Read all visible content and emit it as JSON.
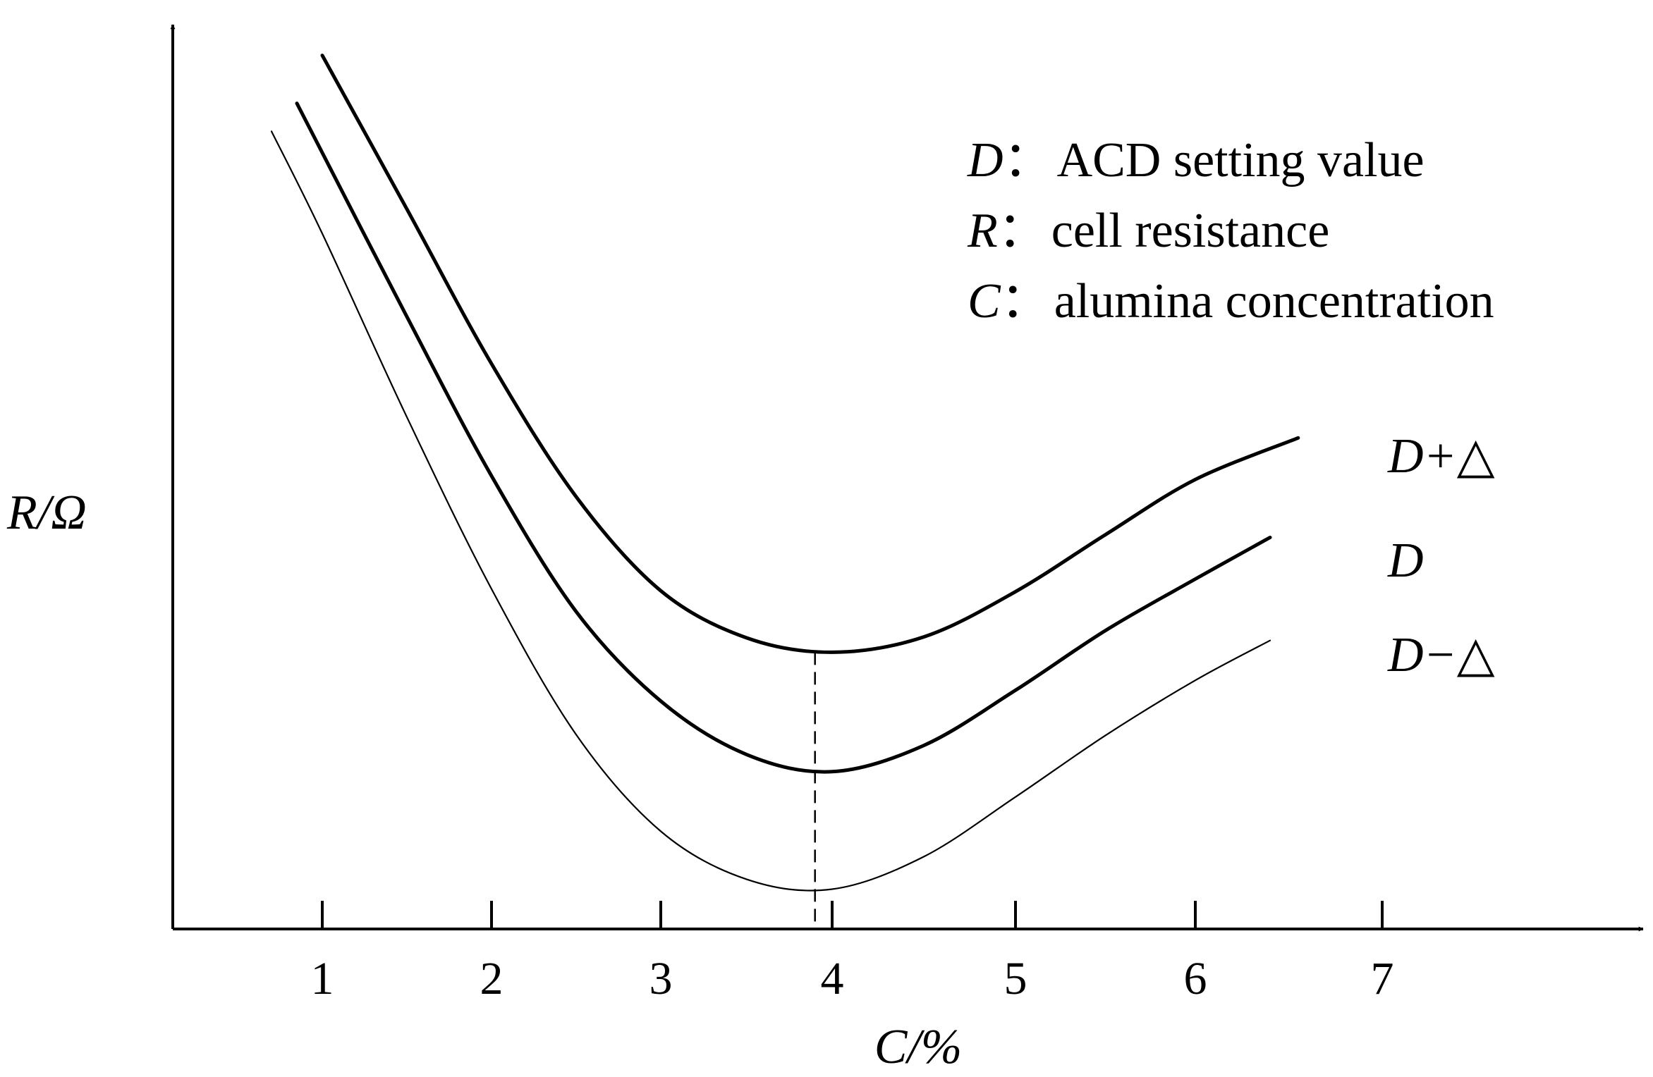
{
  "chart_data": {
    "type": "line",
    "title": "",
    "xlabel": "C/%",
    "ylabel": "R/Ω",
    "xlim": [
      0.1,
      8.5
    ],
    "ylim": [
      0,
      1
    ],
    "x_ticks": [
      "1",
      "2",
      "3",
      "4",
      "5",
      "6",
      "7"
    ],
    "y_ticks": [],
    "grid": false,
    "legend": {
      "placement": "top-right",
      "entries": [
        {
          "symbol": "D",
          "separator": "：",
          "text": "ACD setting value"
        },
        {
          "symbol": "R",
          "separator": "：",
          "text": "cell resistance"
        },
        {
          "symbol": "C",
          "separator": "：",
          "text": "alumina concentration"
        }
      ]
    },
    "minimum_marker": {
      "x": 3.9,
      "style": "dashed"
    },
    "series": [
      {
        "name": "D+△",
        "stroke_weight": "thick",
        "points": [
          [
            1.0,
            0.966
          ],
          [
            1.5,
            0.796
          ],
          [
            2.0,
            0.625
          ],
          [
            2.5,
            0.478
          ],
          [
            3.0,
            0.374
          ],
          [
            3.5,
            0.322
          ],
          [
            4.0,
            0.306
          ],
          [
            4.5,
            0.323
          ],
          [
            5.0,
            0.373
          ],
          [
            5.5,
            0.436
          ],
          [
            6.0,
            0.497
          ],
          [
            6.55,
            0.543
          ]
        ]
      },
      {
        "name": "D",
        "stroke_weight": "thick",
        "points": [
          [
            0.85,
            0.913
          ],
          [
            1.5,
            0.677
          ],
          [
            2.0,
            0.501
          ],
          [
            2.5,
            0.351
          ],
          [
            3.0,
            0.252
          ],
          [
            3.5,
            0.193
          ],
          [
            4.0,
            0.174
          ],
          [
            4.5,
            0.203
          ],
          [
            5.0,
            0.264
          ],
          [
            5.5,
            0.33
          ],
          [
            6.0,
            0.387
          ],
          [
            6.4,
            0.433
          ]
        ]
      },
      {
        "name": "D−△",
        "stroke_weight": "thin",
        "points": [
          [
            0.7,
            0.882
          ],
          [
            1.0,
            0.769
          ],
          [
            1.5,
            0.566
          ],
          [
            2.0,
            0.376
          ],
          [
            2.5,
            0.215
          ],
          [
            3.0,
            0.108
          ],
          [
            3.5,
            0.055
          ],
          [
            4.0,
            0.044
          ],
          [
            4.5,
            0.08
          ],
          [
            5.0,
            0.146
          ],
          [
            5.5,
            0.214
          ],
          [
            6.0,
            0.275
          ],
          [
            6.4,
            0.319
          ]
        ]
      }
    ]
  }
}
